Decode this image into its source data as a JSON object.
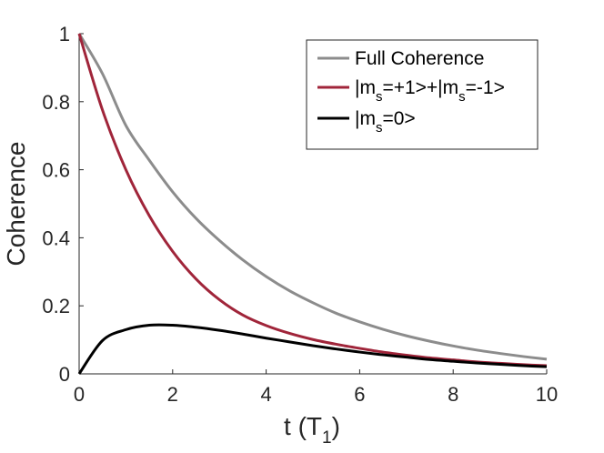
{
  "chart_data": {
    "type": "line",
    "title": "",
    "xlabel": "t (T",
    "xlabel_sub": "1",
    "xlabel_close": ")",
    "ylabel": "Coherence",
    "xlim": [
      0,
      10
    ],
    "ylim": [
      0,
      1
    ],
    "xticks": [
      0,
      2,
      4,
      6,
      8,
      10
    ],
    "xtick_labels": [
      "0",
      "2",
      "4",
      "6",
      "8",
      "10"
    ],
    "yticks": [
      0,
      0.2,
      0.4,
      0.6,
      0.8,
      1
    ],
    "ytick_labels": [
      "0",
      "0.2",
      "0.4",
      "0.6",
      "0.8",
      "1"
    ],
    "grid": false,
    "legend_position": "top-right",
    "x": [
      0,
      0.5,
      1,
      1.5,
      2,
      2.5,
      3,
      3.5,
      4,
      4.5,
      5,
      5.5,
      6,
      6.5,
      7,
      7.5,
      8,
      8.5,
      9,
      9.5,
      10
    ],
    "series": [
      {
        "name": "Full Coherence",
        "legend_parts": [
          {
            "text": "Full Coherence"
          }
        ],
        "color": "#8c8c8c",
        "values": [
          1.0,
          0.882,
          0.73,
          0.628,
          0.535,
          0.457,
          0.392,
          0.335,
          0.286,
          0.244,
          0.209,
          0.178,
          0.153,
          0.131,
          0.112,
          0.096,
          0.082,
          0.07,
          0.06,
          0.051,
          0.043
        ]
      },
      {
        "name": "|ms=+1>+|ms=-1>",
        "legend_parts": [
          {
            "text": "|m"
          },
          {
            "text": "s",
            "sub": true
          },
          {
            "text": "=+1>+|m"
          },
          {
            "text": "s",
            "sub": true
          },
          {
            "text": "=-1>"
          }
        ],
        "color": "#a0253a",
        "values": [
          1.0,
          0.775,
          0.6,
          0.465,
          0.36,
          0.279,
          0.218,
          0.173,
          0.142,
          0.119,
          0.101,
          0.087,
          0.075,
          0.064,
          0.055,
          0.047,
          0.041,
          0.035,
          0.031,
          0.027,
          0.024
        ]
      },
      {
        "name": "|ms=0>",
        "legend_parts": [
          {
            "text": "|m"
          },
          {
            "text": "s",
            "sub": true
          },
          {
            "text": "=0>"
          }
        ],
        "color": "#000000",
        "values": [
          0.0,
          0.098,
          0.13,
          0.143,
          0.143,
          0.137,
          0.128,
          0.117,
          0.105,
          0.094,
          0.083,
          0.073,
          0.064,
          0.056,
          0.049,
          0.042,
          0.037,
          0.032,
          0.028,
          0.024,
          0.021
        ]
      }
    ]
  }
}
